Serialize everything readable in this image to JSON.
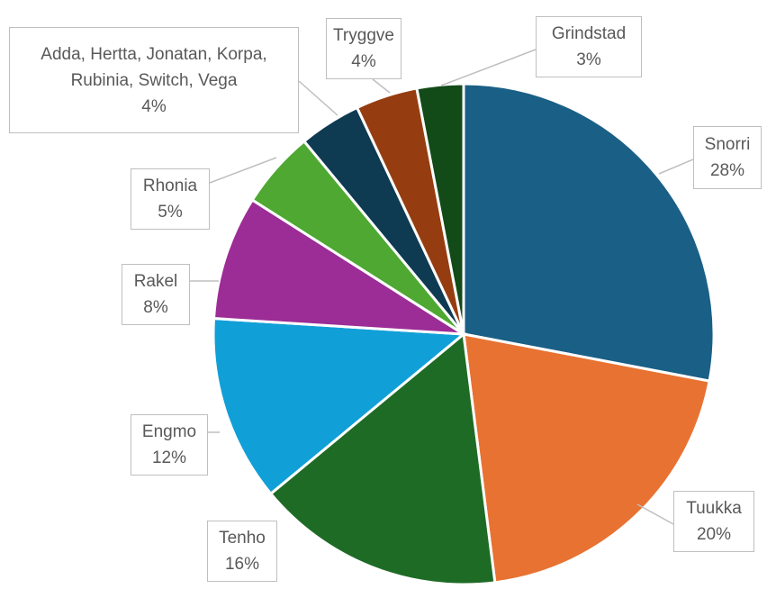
{
  "chart_data": {
    "type": "pie",
    "categories": [
      "Snorri",
      "Tuukka",
      "Tenho",
      "Engmo",
      "Rakel",
      "Rhonia",
      "Adda, Hertta, Jonatan, Korpa, Rubinia, Switch, Vega",
      "Tryggve",
      "Grindstad"
    ],
    "values": [
      28,
      20,
      16,
      12,
      8,
      5,
      4,
      4,
      3
    ],
    "value_labels": [
      "28%",
      "20%",
      "16%",
      "12%",
      "8%",
      "5%",
      "4%",
      "4%",
      "3%"
    ],
    "colors": [
      "#1a5f86",
      "#e87232",
      "#1e6b26",
      "#119fd8",
      "#9c2c96",
      "#4ea832",
      "#0e3a52",
      "#953d10",
      "#124a18"
    ]
  }
}
